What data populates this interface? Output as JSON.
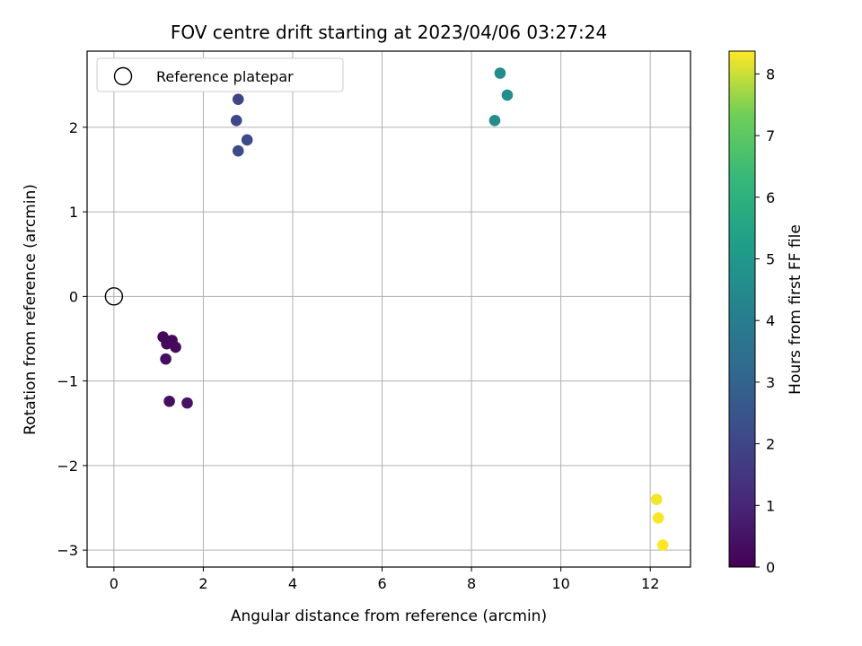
{
  "chart_data": {
    "type": "scatter",
    "title": "FOV centre drift starting at 2023/04/06 03:27:24",
    "xlabel": "Angular distance from reference (arcmin)",
    "ylabel": "Rotation from reference (arcmin)",
    "xlim": [
      -0.6,
      12.9
    ],
    "ylim": [
      -3.2,
      2.9
    ],
    "xticks": [
      0,
      2,
      4,
      6,
      8,
      10,
      12
    ],
    "yticks": [
      -3,
      -2,
      -1,
      0,
      1,
      2
    ],
    "grid": true,
    "legend": {
      "placement": "top-left",
      "entries": [
        "Reference platepar"
      ]
    },
    "reference_point": {
      "x": 0,
      "y": 0
    },
    "colorbar": {
      "label": "Hours from first FF file",
      "range": [
        0,
        8.37
      ],
      "ticks": [
        0,
        1,
        2,
        3,
        4,
        5,
        6,
        7,
        8
      ],
      "colormap": "viridis"
    },
    "points": [
      {
        "x": 1.1,
        "y": -0.48,
        "hours": 0.15
      },
      {
        "x": 1.3,
        "y": -0.52,
        "hours": 0.2
      },
      {
        "x": 1.18,
        "y": -0.56,
        "hours": 0.25
      },
      {
        "x": 1.38,
        "y": -0.6,
        "hours": 0.3
      },
      {
        "x": 1.16,
        "y": -0.74,
        "hours": 0.35
      },
      {
        "x": 1.24,
        "y": -1.24,
        "hours": 0.4
      },
      {
        "x": 1.64,
        "y": -1.26,
        "hours": 0.45
      },
      {
        "x": 2.78,
        "y": 2.33,
        "hours": 2.0
      },
      {
        "x": 2.74,
        "y": 2.08,
        "hours": 2.05
      },
      {
        "x": 2.98,
        "y": 1.85,
        "hours": 2.1
      },
      {
        "x": 2.78,
        "y": 1.72,
        "hours": 2.15
      },
      {
        "x": 8.64,
        "y": 2.64,
        "hours": 4.55
      },
      {
        "x": 8.8,
        "y": 2.38,
        "hours": 4.6
      },
      {
        "x": 8.52,
        "y": 2.08,
        "hours": 4.65
      },
      {
        "x": 12.14,
        "y": -2.4,
        "hours": 8.3
      },
      {
        "x": 12.18,
        "y": -2.62,
        "hours": 8.33
      },
      {
        "x": 12.28,
        "y": -2.94,
        "hours": 8.37
      }
    ]
  }
}
